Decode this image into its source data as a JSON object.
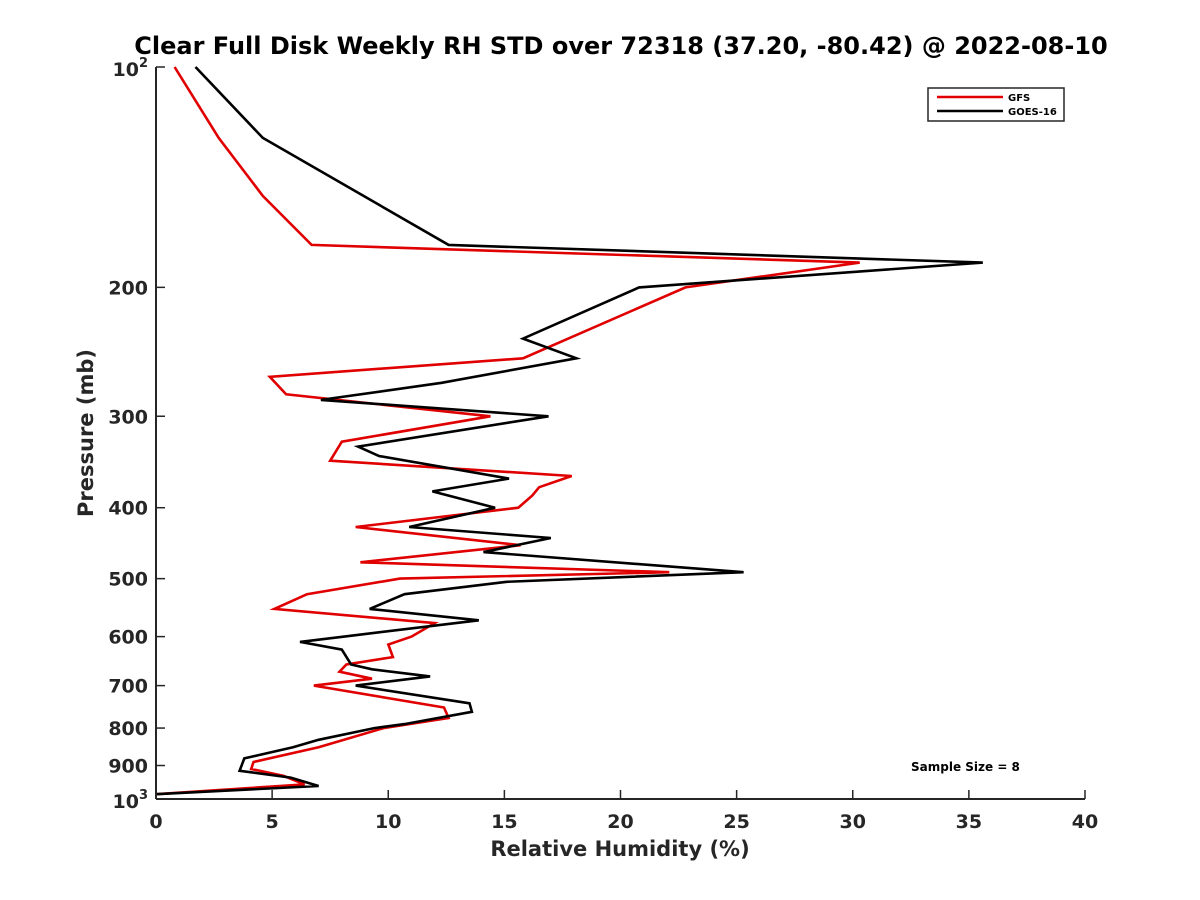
{
  "chart_data": {
    "type": "line",
    "title": "Clear Full Disk Weekly RH STD over 72318 (37.20, -80.42) @ 2022-08-10",
    "xlabel": "Relative Humidity (%)",
    "ylabel": "Pressure (mb)",
    "xlim": [
      0,
      40
    ],
    "ylim": [
      100,
      1000
    ],
    "y_scale": "log",
    "y_reversed": true,
    "x_ticks": [
      0,
      5,
      10,
      15,
      20,
      25,
      30,
      35,
      40
    ],
    "x_tick_labels": [
      "0",
      "5",
      "10",
      "15",
      "20",
      "25",
      "30",
      "35",
      "40"
    ],
    "y_ticks": [
      {
        "value": 100,
        "base": "10",
        "exp": "2"
      },
      {
        "value": 200,
        "label": "200"
      },
      {
        "value": 300,
        "label": "300"
      },
      {
        "value": 400,
        "label": "400"
      },
      {
        "value": 500,
        "label": "500"
      },
      {
        "value": 600,
        "label": "600"
      },
      {
        "value": 700,
        "label": "700"
      },
      {
        "value": 800,
        "label": "800"
      },
      {
        "value": 900,
        "label": "900"
      },
      {
        "value": 1000,
        "base": "10",
        "exp": "3"
      }
    ],
    "grid": false,
    "legend_position": "top-right",
    "annotation": "Sample Size = 8",
    "series": [
      {
        "name": "GFS",
        "color": "#e00000",
        "points": [
          [
            0.8,
            100
          ],
          [
            2.7,
            125
          ],
          [
            4.6,
            150
          ],
          [
            6.7,
            175
          ],
          [
            30.3,
            185
          ],
          [
            22.8,
            200
          ],
          [
            15.8,
            250
          ],
          [
            4.9,
            265
          ],
          [
            5.6,
            280
          ],
          [
            14.4,
            300
          ],
          [
            8.0,
            325
          ],
          [
            7.5,
            345
          ],
          [
            17.9,
            362
          ],
          [
            16.5,
            375
          ],
          [
            16.2,
            385
          ],
          [
            15.6,
            400
          ],
          [
            8.6,
            425
          ],
          [
            15.7,
            450
          ],
          [
            8.8,
            475
          ],
          [
            22.1,
            490
          ],
          [
            10.5,
            500
          ],
          [
            6.5,
            525
          ],
          [
            5.1,
            550
          ],
          [
            12.0,
            575
          ],
          [
            11.0,
            600
          ],
          [
            10.0,
            615
          ],
          [
            10.2,
            640
          ],
          [
            8.2,
            655
          ],
          [
            7.9,
            670
          ],
          [
            9.3,
            685
          ],
          [
            6.8,
            700
          ],
          [
            12.4,
            750
          ],
          [
            12.6,
            775
          ],
          [
            9.8,
            800
          ],
          [
            7.0,
            850
          ],
          [
            4.2,
            890
          ],
          [
            4.1,
            910
          ],
          [
            5.5,
            930
          ],
          [
            6.4,
            955
          ],
          [
            0,
            985
          ]
        ]
      },
      {
        "name": "GOES-16",
        "color": "#000000",
        "points": [
          [
            1.7,
            100
          ],
          [
            4.6,
            125
          ],
          [
            12.6,
            175
          ],
          [
            35.6,
            185
          ],
          [
            20.8,
            200
          ],
          [
            15.8,
            235
          ],
          [
            18.1,
            250
          ],
          [
            12.3,
            270
          ],
          [
            7.1,
            285
          ],
          [
            16.9,
            300
          ],
          [
            8.7,
            330
          ],
          [
            9.6,
            340
          ],
          [
            15.2,
            365
          ],
          [
            11.9,
            380
          ],
          [
            14.6,
            400
          ],
          [
            10.9,
            425
          ],
          [
            17.0,
            440
          ],
          [
            14.1,
            460
          ],
          [
            25.3,
            490
          ],
          [
            15.1,
            505
          ],
          [
            10.7,
            525
          ],
          [
            9.2,
            550
          ],
          [
            13.9,
            570
          ],
          [
            6.2,
            610
          ],
          [
            8.0,
            625
          ],
          [
            8.4,
            655
          ],
          [
            9.3,
            665
          ],
          [
            11.8,
            680
          ],
          [
            8.6,
            700
          ],
          [
            13.5,
            740
          ],
          [
            13.6,
            760
          ],
          [
            10.7,
            790
          ],
          [
            9.4,
            800
          ],
          [
            7.0,
            830
          ],
          [
            5.9,
            850
          ],
          [
            3.8,
            880
          ],
          [
            3.6,
            915
          ],
          [
            5.8,
            935
          ],
          [
            7.0,
            960
          ],
          [
            0,
            985
          ]
        ]
      }
    ]
  }
}
